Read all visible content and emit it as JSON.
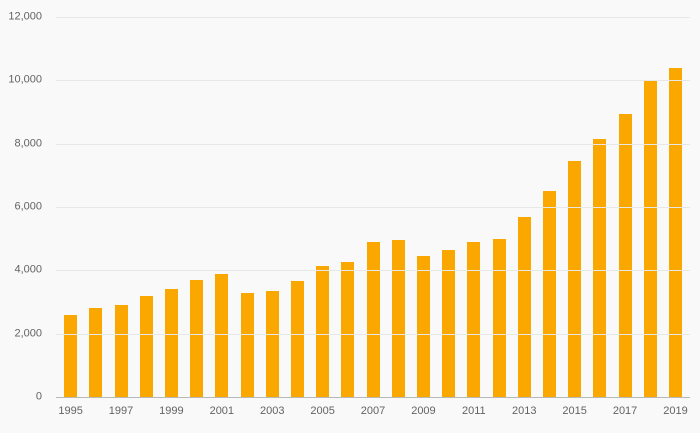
{
  "colors": {
    "background": "#f9f9f9",
    "bar": "#FAA800",
    "gridline": "#e7e7e7",
    "axis_line": "#b8b8b8",
    "tick_text": "#636363"
  },
  "chart_data": {
    "type": "bar",
    "title": "",
    "xlabel": "",
    "ylabel": "",
    "ylim": [
      0,
      12000
    ],
    "grid": true,
    "legend": false,
    "bar_color": "#FAA800",
    "categories": [
      "1995",
      "1996",
      "1997",
      "1998",
      "1999",
      "2000",
      "2001",
      "2002",
      "2003",
      "2004",
      "2005",
      "2006",
      "2007",
      "2008",
      "2009",
      "2010",
      "2011",
      "2012",
      "2013",
      "2014",
      "2015",
      "2016",
      "2017",
      "2018",
      "2019"
    ],
    "values": [
      2600,
      2800,
      2900,
      3200,
      3400,
      3700,
      3900,
      3300,
      3350,
      3650,
      4150,
      4250,
      4900,
      4950,
      4450,
      4650,
      4900,
      5000,
      5700,
      6500,
      7450,
      8150,
      8950,
      10000,
      10400
    ],
    "yticks": [
      {
        "value": 0,
        "label": "0"
      },
      {
        "value": 2000,
        "label": "2,000"
      },
      {
        "value": 4000,
        "label": "4,000"
      },
      {
        "value": 6000,
        "label": "6,000"
      },
      {
        "value": 8000,
        "label": "8,000"
      },
      {
        "value": 10000,
        "label": "10,000"
      },
      {
        "value": 12000,
        "label": "12,000"
      }
    ],
    "xtick_labels": [
      "1995",
      "1997",
      "1999",
      "2001",
      "2003",
      "2005",
      "2007",
      "2009",
      "2011",
      "2013",
      "2015",
      "2017",
      "2019"
    ]
  }
}
